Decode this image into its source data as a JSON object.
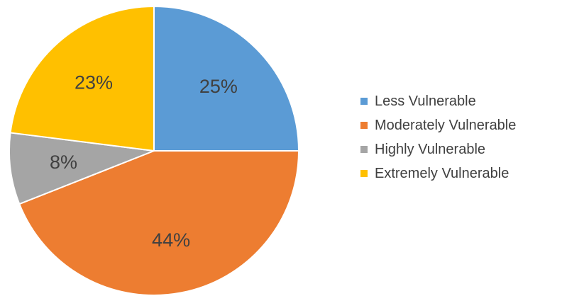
{
  "chart_data": {
    "type": "pie",
    "categories": [
      "Less Vulnerable",
      "Moderately Vulnerable",
      "Highly Vulnerable",
      "Extremely Vulnerable"
    ],
    "values": [
      25,
      44,
      8,
      23
    ],
    "data_labels": [
      "25%",
      "44%",
      "8%",
      "23%"
    ],
    "colors": [
      "#5b9bd5",
      "#ed7d31",
      "#a5a5a5",
      "#ffc000"
    ],
    "legend_position": "right",
    "title": ""
  }
}
